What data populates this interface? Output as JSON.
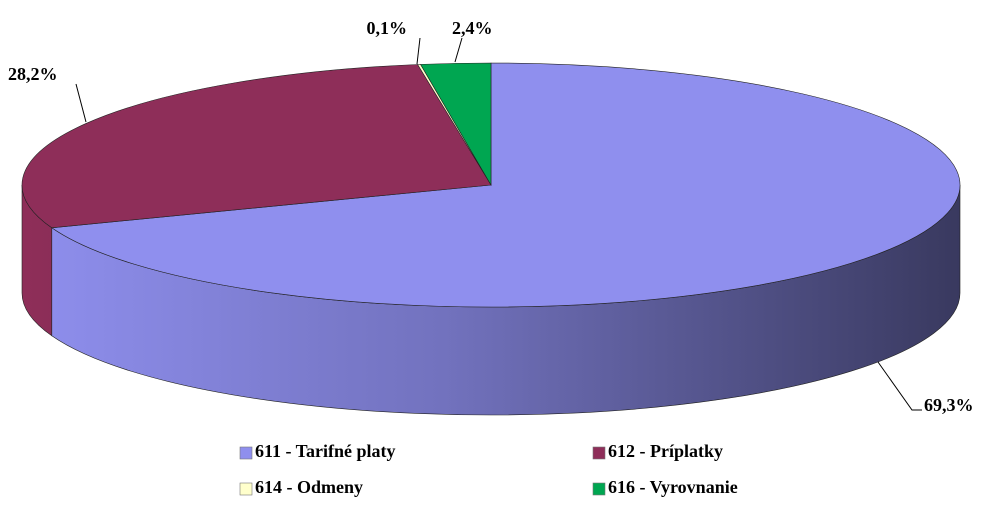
{
  "chart_data": {
    "type": "pie",
    "categories": [
      "611 - Tarifné platy",
      "612 - Príplatky",
      "614 - Odmeny",
      "616 - Vyrovnanie"
    ],
    "values": [
      69.3,
      28.2,
      0.1,
      2.4
    ],
    "value_labels": [
      "69,3%",
      "28,2%",
      "0,1%",
      "2,4%"
    ],
    "colors": [
      "#8f8fee",
      "#8e2e59",
      "#ffffcc",
      "#00a651"
    ]
  }
}
